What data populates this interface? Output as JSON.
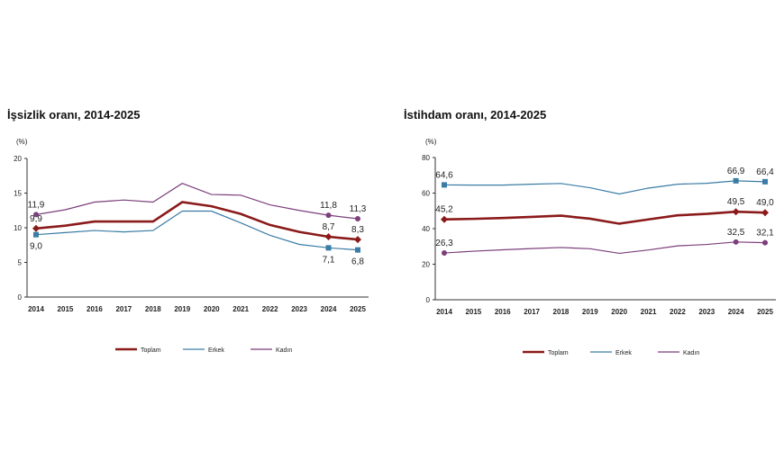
{
  "colors": {
    "Toplam": "#8b1a1a",
    "Erkek": "#3a7ca5",
    "Kadın": "#7b3f7b"
  },
  "chart_data": [
    {
      "type": "line",
      "title": "İşsizlik oranı, 2014-2025",
      "ylabel": "(%)",
      "ylim": [
        0,
        20
      ],
      "yticks": [
        0,
        5,
        10,
        15,
        20
      ],
      "grid": false,
      "legend": "bottom",
      "categories": [
        "2014",
        "2015",
        "2016",
        "2017",
        "2018",
        "2019",
        "2020",
        "2021",
        "2022",
        "2023",
        "2024",
        "2025"
      ],
      "series": [
        {
          "name": "Toplam",
          "values": [
            9.9,
            10.3,
            10.9,
            10.9,
            10.9,
            13.7,
            13.1,
            12.0,
            10.4,
            9.4,
            8.7,
            8.3
          ],
          "labels": {
            "0": "9,9",
            "10": "8,7",
            "11": "8,3"
          }
        },
        {
          "name": "Erkek",
          "values": [
            9.0,
            9.3,
            9.6,
            9.4,
            9.6,
            12.4,
            12.4,
            10.7,
            8.9,
            7.6,
            7.1,
            6.8
          ],
          "labels": {
            "0": "9,0",
            "10": "7,1",
            "11": "6,8"
          }
        },
        {
          "name": "Kadın",
          "values": [
            11.9,
            12.6,
            13.7,
            14.0,
            13.7,
            16.4,
            14.8,
            14.7,
            13.3,
            12.5,
            11.8,
            11.3
          ],
          "labels": {
            "0": "11,9",
            "10": "11,8",
            "11": "11,3"
          }
        }
      ]
    },
    {
      "type": "line",
      "title": "İstihdam oranı, 2014-2025",
      "ylabel": "(%)",
      "ylim": [
        0,
        80
      ],
      "yticks": [
        0,
        20,
        40,
        60,
        80
      ],
      "grid": false,
      "legend": "bottom",
      "categories": [
        "2014",
        "2015",
        "2016",
        "2017",
        "2018",
        "2019",
        "2020",
        "2021",
        "2022",
        "2023",
        "2024",
        "2025"
      ],
      "series": [
        {
          "name": "Toplam",
          "values": [
            45.2,
            45.5,
            46.0,
            46.6,
            47.3,
            45.6,
            42.8,
            45.2,
            47.5,
            48.3,
            49.5,
            49.0
          ],
          "labels": {
            "0": "45,2",
            "10": "49,5",
            "11": "49,0"
          }
        },
        {
          "name": "Erkek",
          "values": [
            64.6,
            64.5,
            64.5,
            65.0,
            65.4,
            63.0,
            59.5,
            62.8,
            65.0,
            65.5,
            66.9,
            66.4
          ],
          "labels": {
            "0": "64,6",
            "10": "66,9",
            "11": "66,4"
          }
        },
        {
          "name": "Kadın",
          "values": [
            26.3,
            27.3,
            28.1,
            28.8,
            29.4,
            28.7,
            26.1,
            28.0,
            30.3,
            31.1,
            32.5,
            32.1
          ],
          "labels": {
            "0": "26,3",
            "10": "32,5",
            "11": "32,1"
          }
        }
      ]
    }
  ]
}
